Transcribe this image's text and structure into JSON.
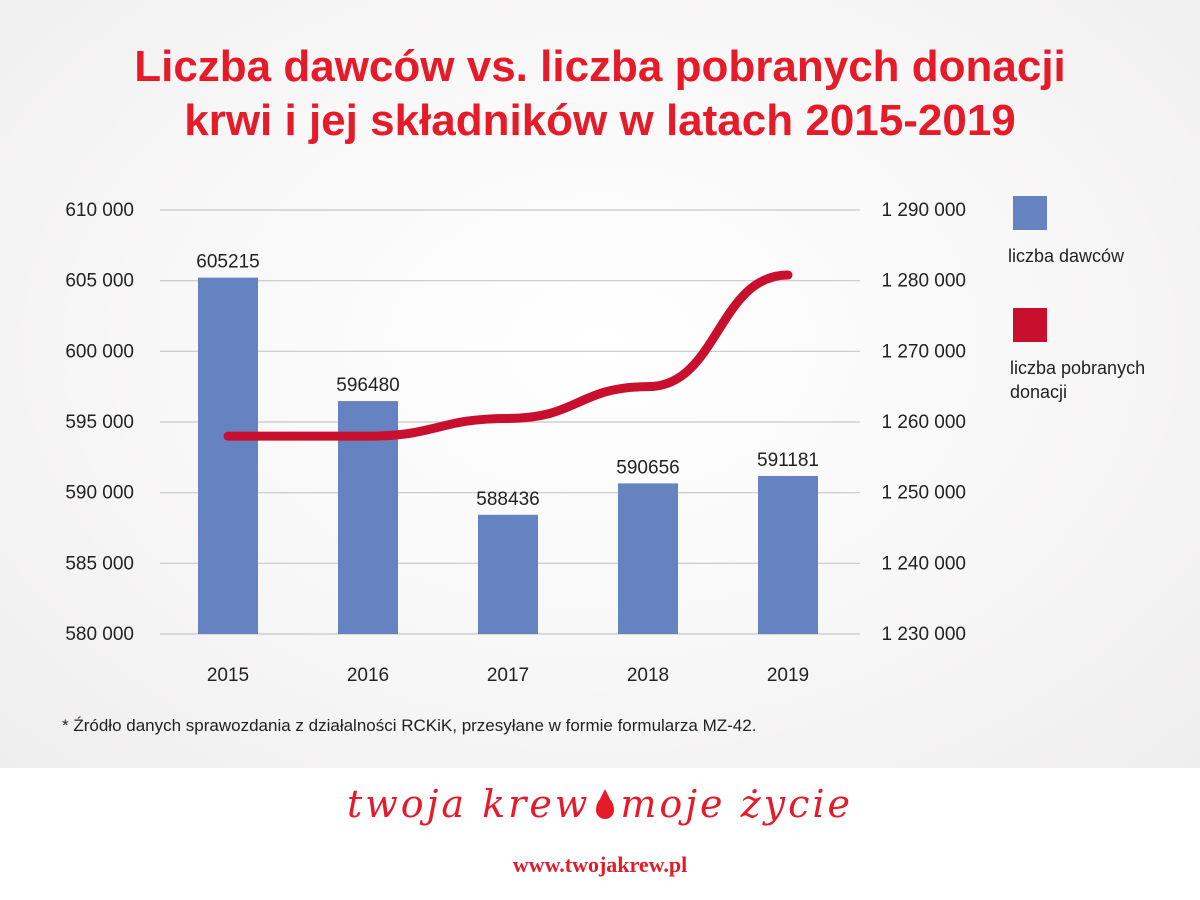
{
  "title": {
    "line1": "Liczba dawców vs. liczba pobranych donacji",
    "line2": "krwi i jej składników w latach 2015-2019"
  },
  "legend": {
    "donors_label": "liczba dawców",
    "donations_label_line1": "liczba pobranych",
    "donations_label_line2": "donacji"
  },
  "footnote": "* Źródło danych sprawozdania z działalności RCKiK, przesyłane w formie formularza MZ-42.",
  "slogan": {
    "part1": "twoja krew",
    "part2": "moje życie"
  },
  "url": "www.twojakrew.pl",
  "colors": {
    "bar": "#6583c1",
    "line": "#c8102e",
    "title": "#e51b2a",
    "grid": "#c7c7c7"
  },
  "chart_data": {
    "type": "bar",
    "categories": [
      "2015",
      "2016",
      "2017",
      "2018",
      "2019"
    ],
    "series": [
      {
        "name": "liczba dawców",
        "type": "bar",
        "axis": "left",
        "values": [
          605215,
          596480,
          588436,
          590656,
          591181
        ],
        "labels": [
          "605215",
          "596480",
          "588436",
          "590656",
          "591181"
        ]
      },
      {
        "name": "liczba pobranych donacji",
        "type": "line",
        "axis": "right",
        "values": [
          1258000,
          1258000,
          1260500,
          1265000,
          1280800
        ]
      }
    ],
    "ylim_left": [
      580000,
      610000
    ],
    "ylim_right": [
      1230000,
      1290000
    ],
    "yticks_left": [
      "580 000",
      "585 000",
      "590 000",
      "595 000",
      "600 000",
      "605 000",
      "610 000"
    ],
    "yticks_right": [
      "1 230 000",
      "1 240 000",
      "1 250 000",
      "1 260 000",
      "1 270 000",
      "1 280 000",
      "1 290 000"
    ],
    "grid": true,
    "legend_position": "right"
  }
}
